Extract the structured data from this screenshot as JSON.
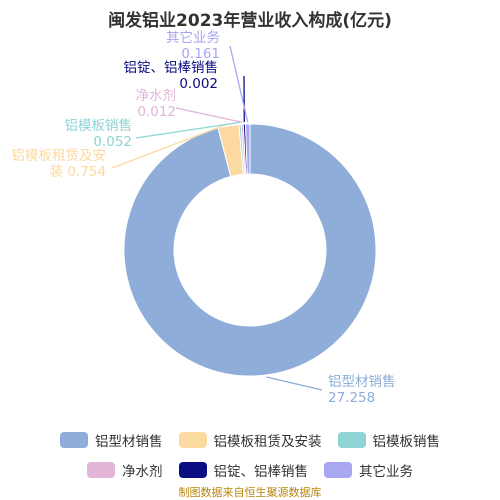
{
  "chart_data": {
    "type": "pie",
    "title": "闽发铝业2023年营业收入构成(亿元)",
    "source": "制图数据来自恒生聚源数据库",
    "slices": [
      {
        "label": "铝型材销售",
        "value": 27.258,
        "value_text": "27.258",
        "color": "#8fadd9",
        "callout_label": "铝型材销售",
        "callout_value": "27.258"
      },
      {
        "label": "铝模板租赁及安装",
        "value": 0.754,
        "value_text": "0.754",
        "color": "#fcd9a0",
        "callout_label": "铝模板租赁及安",
        "callout_value": "装 0.754"
      },
      {
        "label": "铝模板销售",
        "value": 0.052,
        "value_text": "0.052",
        "color": "#8ed4d4",
        "callout_label": "铝模板销售",
        "callout_value": "0.052"
      },
      {
        "label": "净水剂",
        "value": 0.012,
        "value_text": "0.012",
        "color": "#e3b5d8",
        "callout_label": "净水剂",
        "callout_value": "0.012"
      },
      {
        "label": "铝锭、铝棒销售",
        "value": 0.002,
        "value_text": "0.002",
        "color": "#0b0d82",
        "callout_label": "铝锭、铝棒销售",
        "callout_value": "0.002"
      },
      {
        "label": "其它业务",
        "value": 0.161,
        "value_text": "0.161",
        "color": "#a9a6f2",
        "callout_label": "其它业务",
        "callout_value": "0.161"
      }
    ],
    "legend_position": "bottom"
  }
}
